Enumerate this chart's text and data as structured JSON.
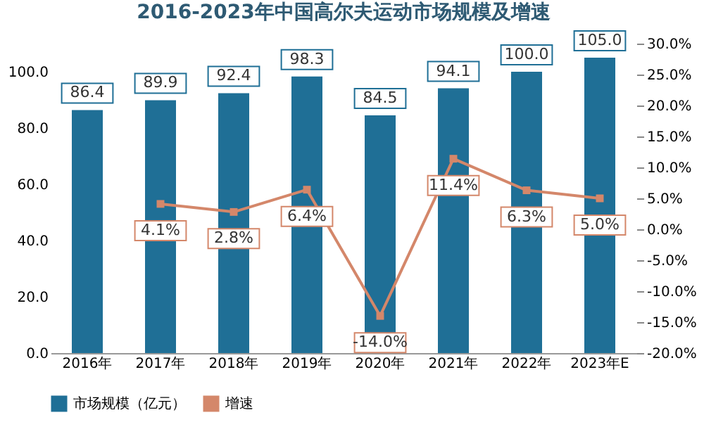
{
  "chart_data": {
    "type": "bar",
    "title": "2016-2023年中国高尔夫运动市场规模及增速",
    "categories": [
      "2016年",
      "2017年",
      "2018年",
      "2019年",
      "2020年",
      "2021年",
      "2022年",
      "2023年E"
    ],
    "series": [
      {
        "name": "市场规模（亿元）",
        "color": "#1f6f96",
        "values": [
          86.4,
          89.9,
          92.4,
          98.3,
          84.5,
          94.1,
          100.0,
          105.0
        ],
        "value_labels": [
          "86.4",
          "89.9",
          "92.4",
          "98.3",
          "84.5",
          "94.1",
          "100.0",
          "105.0"
        ]
      },
      {
        "name": "增速",
        "type": "line",
        "axis": "y2",
        "color": "#d4876a",
        "marker": "square",
        "values": [
          null,
          4.1,
          2.8,
          6.4,
          -14.0,
          11.4,
          6.3,
          5.0
        ],
        "value_labels": [
          null,
          "4.1%",
          "2.8%",
          "6.4%",
          "-14.0%",
          "11.4%",
          "6.3%",
          "5.0%"
        ]
      }
    ],
    "ylim": [
      0,
      110
    ],
    "yticks": [
      {
        "value": 0,
        "label": "0.0"
      },
      {
        "value": 20,
        "label": "20.0"
      },
      {
        "value": 40,
        "label": "40.0"
      },
      {
        "value": 60,
        "label": "60.0"
      },
      {
        "value": 80,
        "label": "80.0"
      },
      {
        "value": 100,
        "label": "100.0"
      }
    ],
    "y2lim": [
      -20,
      30
    ],
    "y2ticks": [
      {
        "value": -20,
        "label": "-20.0%"
      },
      {
        "value": -15,
        "label": "-15.0%"
      },
      {
        "value": -10,
        "label": "-10.0%"
      },
      {
        "value": -5,
        "label": "-5.0%"
      },
      {
        "value": 0,
        "label": "0.0%"
      },
      {
        "value": 5,
        "label": "5.0%"
      },
      {
        "value": 10,
        "label": "10.0%"
      },
      {
        "value": 15,
        "label": "15.0%"
      },
      {
        "value": 20,
        "label": "20.0%"
      },
      {
        "value": 25,
        "label": "25.0%"
      },
      {
        "value": 30,
        "label": "30.0%"
      }
    ],
    "data_labels": true,
    "grid": false,
    "legend": "bottom"
  }
}
